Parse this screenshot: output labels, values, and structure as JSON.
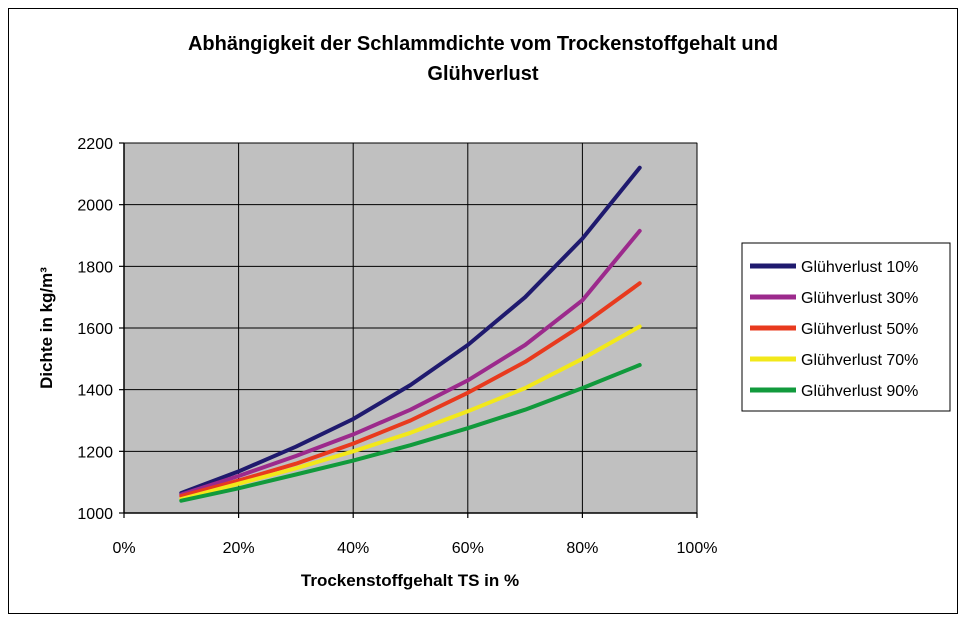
{
  "chart_data": {
    "type": "line",
    "title": "Abhängigkeit der Schlammdichte vom Trockenstoffgehalt und Glühverlust",
    "title_lines": [
      "Abhängigkeit der Schlammdichte vom Trockenstoffgehalt und",
      "Glühverlust"
    ],
    "xlabel": "Trockenstoffgehalt TS in %",
    "ylabel": "Dichte in kg/m³",
    "xlim": [
      0,
      100
    ],
    "ylim": [
      1000,
      2200
    ],
    "x_ticks": [
      0,
      20,
      40,
      60,
      80,
      100
    ],
    "x_tick_labels": [
      "0%",
      "20%",
      "40%",
      "60%",
      "80%",
      "100%"
    ],
    "y_ticks": [
      1000,
      1200,
      1400,
      1600,
      1800,
      2000,
      2200
    ],
    "y_tick_labels": [
      "1000",
      "1200",
      "1400",
      "1600",
      "1800",
      "2000",
      "2200"
    ],
    "grid": true,
    "plot_background": "#c0c0c0",
    "legend_position": "right",
    "x": [
      10,
      20,
      30,
      40,
      50,
      60,
      70,
      80,
      90
    ],
    "series": [
      {
        "name": "Glühverlust 10%",
        "color": "#1f1a6e",
        "values": [
          1065,
          1135,
          1215,
          1305,
          1415,
          1545,
          1700,
          1890,
          2120
        ]
      },
      {
        "name": "Glühverlust 30%",
        "color": "#9c2a8c",
        "values": [
          1060,
          1120,
          1185,
          1255,
          1335,
          1430,
          1545,
          1690,
          1915
        ]
      },
      {
        "name": "Glühverlust 50%",
        "color": "#e83a1e",
        "values": [
          1055,
          1105,
          1160,
          1225,
          1300,
          1390,
          1490,
          1610,
          1745
        ]
      },
      {
        "name": "Glühverlust 70%",
        "color": "#f2e81a",
        "values": [
          1045,
          1095,
          1145,
          1200,
          1260,
          1330,
          1405,
          1500,
          1605
        ]
      },
      {
        "name": "Glühverlust 90%",
        "color": "#119a3c",
        "values": [
          1040,
          1080,
          1125,
          1170,
          1220,
          1275,
          1335,
          1405,
          1480
        ]
      }
    ]
  }
}
